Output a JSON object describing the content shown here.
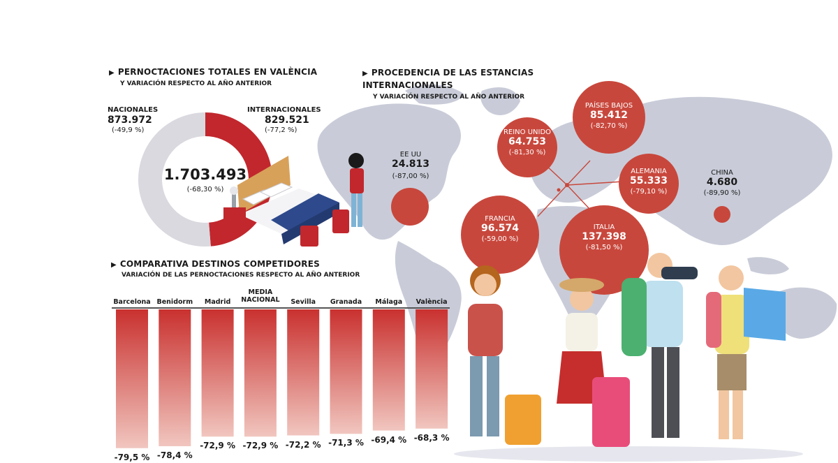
{
  "colors": {
    "red": "#c1272d",
    "grey_ring": "#d9d9df",
    "bubble": "#c8473c",
    "bar_top": "#c9312f",
    "bar_bottom": "#f1c6bf",
    "map": "#c9ccd8"
  },
  "chart_data": [
    {
      "type": "pie",
      "title": "PERNOCTACIONES TOTALES EN VALÈNCIA",
      "subtitle": "Y VARIACIÓN RESPECTO AL AÑO ANTERIOR",
      "total": {
        "value": "1.703.493",
        "variation": "(-68,30 %)"
      },
      "slices": [
        {
          "name": "NACIONALES",
          "value": 873972,
          "display": "873.972",
          "variation": "(-49,9 %)",
          "color": "#d9d9df"
        },
        {
          "name": "INTERNACIONALES",
          "value": 829521,
          "display": "829.521",
          "variation": "(-77,2 %)",
          "color": "#c1272d"
        }
      ]
    },
    {
      "type": "scatter",
      "title": "PROCEDENCIA DE LAS ESTANCIAS INTERNACIONALES",
      "subtitle": "Y VARIACIÓN RESPECTO AL AÑO ANTERIOR",
      "points": [
        {
          "name": "EE UU",
          "value": 24813,
          "display": "24.813",
          "variation": "(-87,00 %)"
        },
        {
          "name": "REINO UNIDO",
          "value": 64753,
          "display": "64.753",
          "variation": "(-81,30 %)"
        },
        {
          "name": "PAÍSES BAJOS",
          "value": 85412,
          "display": "85.412",
          "variation": "(-82,70 %)"
        },
        {
          "name": "ALEMANIA",
          "value": 55333,
          "display": "55.333",
          "variation": "(-79,10 %)"
        },
        {
          "name": "CHINA",
          "value": 4680,
          "display": "4.680",
          "variation": "(-89,90 %)"
        },
        {
          "name": "FRANCIA",
          "value": 96574,
          "display": "96.574",
          "variation": "(-59,00 %)"
        },
        {
          "name": "ITALIA",
          "value": 137398,
          "display": "137.398",
          "variation": "(-81,50 %)"
        }
      ]
    },
    {
      "type": "bar",
      "title": "COMPARATIVA DESTINOS COMPETIDORES",
      "subtitle": "VARIACIÓN DE LAS PERNOCTACIONES RESPECTO AL AÑO ANTERIOR",
      "categories": [
        "Barcelona",
        "Benidorm",
        "Madrid",
        "MEDIA NACIONAL",
        "Sevilla",
        "Granada",
        "Málaga",
        "València"
      ],
      "values": [
        -79.5,
        -78.4,
        -72.9,
        -72.9,
        -72.2,
        -71.3,
        -69.4,
        -68.3
      ],
      "labels": [
        "-79,5 %",
        "-78,4 %",
        "-72,9 %",
        "-72,9 %",
        "-72,2 %",
        "-71,3 %",
        "-69,4 %",
        "-68,3 %"
      ],
      "ylim": [
        -80,
        0
      ]
    }
  ]
}
